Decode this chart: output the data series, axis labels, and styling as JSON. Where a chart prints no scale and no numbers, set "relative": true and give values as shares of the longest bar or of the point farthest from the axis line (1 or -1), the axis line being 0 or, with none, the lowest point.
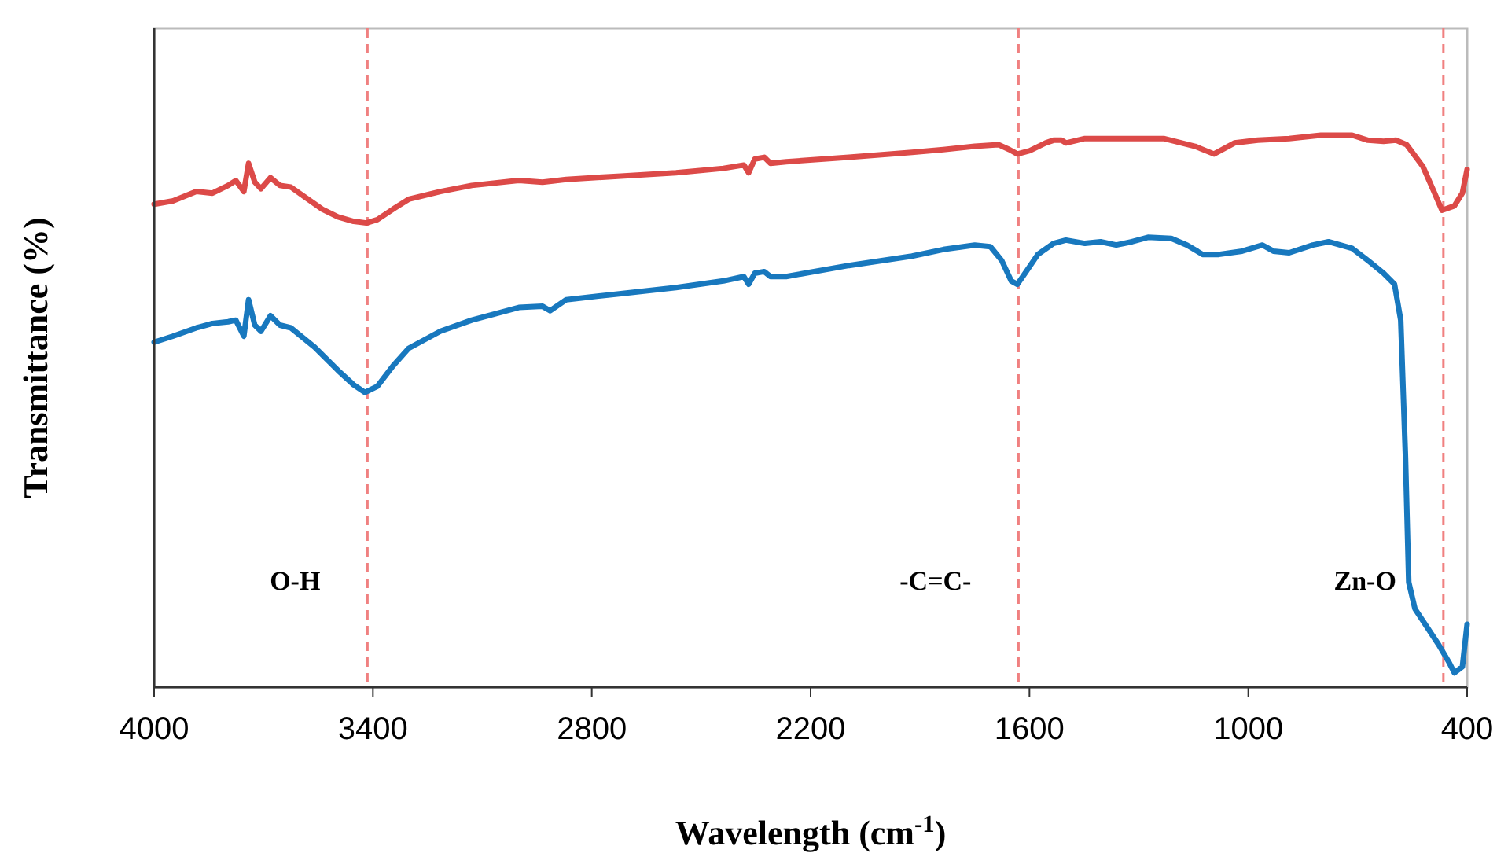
{
  "chart_data": {
    "type": "line",
    "relative": true,
    "xlabel": "Wavelength (cm$^{-1}$)",
    "ylabel": "Transmittance  (%)",
    "xlim": [
      4000,
      400
    ],
    "xticks": [
      4000,
      3400,
      2800,
      2200,
      1600,
      1000,
      400
    ],
    "grid": false,
    "marker": "none",
    "line_style": "solid",
    "ref_lines": [
      {
        "axis": "x",
        "value": 3415,
        "label": "O-H",
        "color": "#f08080",
        "line_style": "dashed"
      },
      {
        "axis": "x",
        "value": 1630,
        "label": "-C=C-",
        "color": "#f08080",
        "line_style": "dashed"
      },
      {
        "axis": "x",
        "value": 465,
        "label": "Zn-O",
        "color": "#f08080",
        "line_style": "dashed"
      }
    ],
    "series": [
      {
        "color": "#dc4a48",
        "x": [
          4000,
          3948,
          3884,
          3840,
          3797,
          3776,
          3754,
          3741,
          3724,
          3707,
          3681,
          3655,
          3625,
          3582,
          3539,
          3496,
          3453,
          3418,
          3388,
          3345,
          3302,
          3215,
          3129,
          3000,
          2935,
          2870,
          2720,
          2569,
          2439,
          2383,
          2370,
          2353,
          2327,
          2310,
          2267,
          2095,
          1922,
          1836,
          1750,
          1685,
          1655,
          1633,
          1599,
          1556,
          1534,
          1512,
          1500,
          1448,
          1319,
          1232,
          1146,
          1094,
          1038,
          974,
          888,
          801,
          715,
          672,
          629,
          595,
          566,
          521,
          491,
          469,
          435,
          413,
          400
        ],
        "values": [
          0.875,
          0.881,
          0.898,
          0.895,
          0.909,
          0.918,
          0.898,
          0.949,
          0.915,
          0.903,
          0.923,
          0.909,
          0.906,
          0.886,
          0.866,
          0.852,
          0.844,
          0.841,
          0.847,
          0.866,
          0.884,
          0.898,
          0.909,
          0.918,
          0.915,
          0.92,
          0.926,
          0.932,
          0.94,
          0.946,
          0.932,
          0.957,
          0.96,
          0.949,
          0.952,
          0.96,
          0.969,
          0.974,
          0.98,
          0.983,
          0.974,
          0.966,
          0.972,
          0.986,
          0.991,
          0.991,
          0.986,
          0.994,
          0.994,
          0.994,
          0.98,
          0.966,
          0.986,
          0.991,
          0.994,
          1,
          1,
          0.991,
          0.989,
          0.991,
          0.983,
          0.943,
          0.898,
          0.864,
          0.872,
          0.895,
          0.938
        ]
      },
      {
        "color": "#1878be",
        "x": [
          4000,
          3948,
          3884,
          3840,
          3797,
          3776,
          3754,
          3741,
          3724,
          3707,
          3681,
          3655,
          3625,
          3560,
          3496,
          3453,
          3422,
          3388,
          3345,
          3302,
          3215,
          3129,
          3000,
          2935,
          2914,
          2870,
          2720,
          2569,
          2439,
          2383,
          2370,
          2353,
          2327,
          2310,
          2267,
          2095,
          1922,
          1836,
          1750,
          1707,
          1676,
          1650,
          1633,
          1612,
          1577,
          1534,
          1500,
          1448,
          1405,
          1362,
          1319,
          1275,
          1211,
          1168,
          1125,
          1081,
          1017,
          961,
          931,
          888,
          823,
          780,
          715,
          672,
          629,
          599,
          582,
          569,
          560,
          543,
          478,
          448,
          435,
          413,
          400
        ],
        "values": [
          0.625,
          0.636,
          0.651,
          0.659,
          0.662,
          0.665,
          0.636,
          0.702,
          0.656,
          0.645,
          0.673,
          0.656,
          0.651,
          0.616,
          0.574,
          0.548,
          0.534,
          0.545,
          0.582,
          0.614,
          0.645,
          0.665,
          0.688,
          0.69,
          0.682,
          0.702,
          0.713,
          0.724,
          0.736,
          0.744,
          0.73,
          0.75,
          0.753,
          0.744,
          0.744,
          0.764,
          0.781,
          0.793,
          0.801,
          0.798,
          0.773,
          0.736,
          0.73,
          0.75,
          0.784,
          0.804,
          0.81,
          0.804,
          0.807,
          0.801,
          0.807,
          0.815,
          0.813,
          0.801,
          0.784,
          0.784,
          0.79,
          0.801,
          0.79,
          0.787,
          0.801,
          0.807,
          0.795,
          0.773,
          0.75,
          0.73,
          0.665,
          0.418,
          0.19,
          0.142,
          0.077,
          0.043,
          0.026,
          0.037,
          0.114
        ]
      }
    ]
  }
}
